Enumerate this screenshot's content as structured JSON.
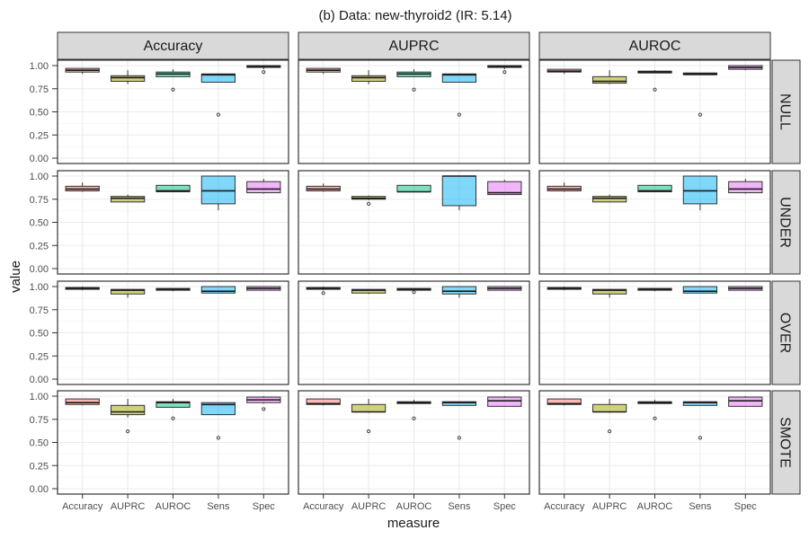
{
  "chart_data": {
    "type": "boxplot",
    "title": "(b) Data: new-thyroid2 (IR: 5.14)",
    "xlabel": "measure",
    "ylabel": "value",
    "ylim": [
      0,
      1
    ],
    "yticks": [
      "0.00",
      "0.25",
      "0.50",
      "0.75",
      "1.00"
    ],
    "grid": true,
    "categories": [
      "Accuracy",
      "AUPRC",
      "AUROC",
      "Sens",
      "Spec"
    ],
    "columns": [
      "Accuracy",
      "AUPRC",
      "AUROC"
    ],
    "rows": [
      "NULL",
      "UNDER",
      "OVER",
      "SMOTE"
    ],
    "colors": {
      "Accuracy": "#F8766D",
      "AUPRC": "#A3A500",
      "AUROC": "#00BF7D",
      "Sens": "#00B0F6",
      "Spec": "#E76BF3"
    },
    "panels": [
      {
        "row": "NULL",
        "col": "Accuracy",
        "boxes": [
          {
            "cat": "Accuracy",
            "wmin": 0.91,
            "q1": 0.93,
            "med": 0.95,
            "q3": 0.97,
            "wmax": 0.97,
            "out": []
          },
          {
            "cat": "AUPRC",
            "wmin": 0.8,
            "q1": 0.83,
            "med": 0.87,
            "q3": 0.89,
            "wmax": 0.95,
            "out": []
          },
          {
            "cat": "AUROC",
            "wmin": 0.88,
            "q1": 0.88,
            "med": 0.91,
            "q3": 0.93,
            "wmax": 0.96,
            "out": [
              0.74
            ]
          },
          {
            "cat": "Sens",
            "wmin": 0.82,
            "q1": 0.82,
            "med": 0.9,
            "q3": 0.91,
            "wmax": 0.91,
            "out": [
              0.47
            ]
          },
          {
            "cat": "Spec",
            "wmin": 0.96,
            "q1": 0.98,
            "med": 0.99,
            "q3": 1.0,
            "wmax": 1.0,
            "out": [
              0.93
            ]
          }
        ]
      },
      {
        "row": "NULL",
        "col": "AUPRC",
        "boxes": [
          {
            "cat": "Accuracy",
            "wmin": 0.91,
            "q1": 0.93,
            "med": 0.95,
            "q3": 0.97,
            "wmax": 0.97,
            "out": []
          },
          {
            "cat": "AUPRC",
            "wmin": 0.8,
            "q1": 0.83,
            "med": 0.87,
            "q3": 0.89,
            "wmax": 0.95,
            "out": []
          },
          {
            "cat": "AUROC",
            "wmin": 0.88,
            "q1": 0.88,
            "med": 0.91,
            "q3": 0.93,
            "wmax": 0.96,
            "out": [
              0.74
            ]
          },
          {
            "cat": "Sens",
            "wmin": 0.82,
            "q1": 0.82,
            "med": 0.9,
            "q3": 0.91,
            "wmax": 0.91,
            "out": [
              0.47
            ]
          },
          {
            "cat": "Spec",
            "wmin": 0.96,
            "q1": 0.98,
            "med": 0.99,
            "q3": 1.0,
            "wmax": 1.0,
            "out": [
              0.93
            ]
          }
        ]
      },
      {
        "row": "NULL",
        "col": "AUROC",
        "boxes": [
          {
            "cat": "Accuracy",
            "wmin": 0.91,
            "q1": 0.93,
            "med": 0.94,
            "q3": 0.96,
            "wmax": 0.96,
            "out": []
          },
          {
            "cat": "AUPRC",
            "wmin": 0.8,
            "q1": 0.81,
            "med": 0.83,
            "q3": 0.88,
            "wmax": 0.95,
            "out": []
          },
          {
            "cat": "AUROC",
            "wmin": 0.92,
            "q1": 0.92,
            "med": 0.93,
            "q3": 0.94,
            "wmax": 0.95,
            "out": [
              0.74
            ]
          },
          {
            "cat": "Sens",
            "wmin": 0.9,
            "q1": 0.9,
            "med": 0.91,
            "q3": 0.92,
            "wmax": 0.92,
            "out": [
              0.47
            ]
          },
          {
            "cat": "Spec",
            "wmin": 0.95,
            "q1": 0.96,
            "med": 0.98,
            "q3": 1.0,
            "wmax": 1.0,
            "out": []
          }
        ]
      },
      {
        "row": "UNDER",
        "col": "Accuracy",
        "boxes": [
          {
            "cat": "Accuracy",
            "wmin": 0.83,
            "q1": 0.84,
            "med": 0.86,
            "q3": 0.89,
            "wmax": 0.93,
            "out": []
          },
          {
            "cat": "AUPRC",
            "wmin": 0.72,
            "q1": 0.72,
            "med": 0.76,
            "q3": 0.78,
            "wmax": 0.8,
            "out": []
          },
          {
            "cat": "AUROC",
            "wmin": 0.83,
            "q1": 0.83,
            "med": 0.84,
            "q3": 0.9,
            "wmax": 0.9,
            "out": []
          },
          {
            "cat": "Sens",
            "wmin": 0.63,
            "q1": 0.7,
            "med": 0.84,
            "q3": 1.0,
            "wmax": 1.0,
            "out": []
          },
          {
            "cat": "Spec",
            "wmin": 0.81,
            "q1": 0.82,
            "med": 0.86,
            "q3": 0.94,
            "wmax": 0.97,
            "out": []
          }
        ]
      },
      {
        "row": "UNDER",
        "col": "AUPRC",
        "boxes": [
          {
            "cat": "Accuracy",
            "wmin": 0.83,
            "q1": 0.84,
            "med": 0.86,
            "q3": 0.89,
            "wmax": 0.92,
            "out": []
          },
          {
            "cat": "AUPRC",
            "wmin": 0.74,
            "q1": 0.75,
            "med": 0.76,
            "q3": 0.78,
            "wmax": 0.79,
            "out": [
              0.7
            ]
          },
          {
            "cat": "AUROC",
            "wmin": 0.83,
            "q1": 0.83,
            "med": 0.83,
            "q3": 0.9,
            "wmax": 0.9,
            "out": []
          },
          {
            "cat": "Sens",
            "wmin": 0.63,
            "q1": 0.68,
            "med": 1.0,
            "q3": 1.0,
            "wmax": 1.0,
            "out": []
          },
          {
            "cat": "Spec",
            "wmin": 0.8,
            "q1": 0.8,
            "med": 0.82,
            "q3": 0.94,
            "wmax": 0.96,
            "out": []
          }
        ]
      },
      {
        "row": "UNDER",
        "col": "AUROC",
        "boxes": [
          {
            "cat": "Accuracy",
            "wmin": 0.83,
            "q1": 0.84,
            "med": 0.86,
            "q3": 0.89,
            "wmax": 0.93,
            "out": []
          },
          {
            "cat": "AUPRC",
            "wmin": 0.72,
            "q1": 0.72,
            "med": 0.76,
            "q3": 0.78,
            "wmax": 0.8,
            "out": []
          },
          {
            "cat": "AUROC",
            "wmin": 0.83,
            "q1": 0.83,
            "med": 0.84,
            "q3": 0.9,
            "wmax": 0.9,
            "out": []
          },
          {
            "cat": "Sens",
            "wmin": 0.63,
            "q1": 0.7,
            "med": 0.84,
            "q3": 1.0,
            "wmax": 1.0,
            "out": []
          },
          {
            "cat": "Spec",
            "wmin": 0.81,
            "q1": 0.82,
            "med": 0.86,
            "q3": 0.94,
            "wmax": 0.97,
            "out": []
          }
        ]
      },
      {
        "row": "OVER",
        "col": "Accuracy",
        "boxes": [
          {
            "cat": "Accuracy",
            "wmin": 0.96,
            "q1": 0.97,
            "med": 0.98,
            "q3": 0.99,
            "wmax": 1.0,
            "out": []
          },
          {
            "cat": "AUPRC",
            "wmin": 0.88,
            "q1": 0.92,
            "med": 0.96,
            "q3": 0.97,
            "wmax": 0.97,
            "out": []
          },
          {
            "cat": "AUROC",
            "wmin": 0.95,
            "q1": 0.96,
            "med": 0.97,
            "q3": 0.98,
            "wmax": 0.98,
            "out": []
          },
          {
            "cat": "Sens",
            "wmin": 0.93,
            "q1": 0.93,
            "med": 0.95,
            "q3": 1.0,
            "wmax": 1.0,
            "out": []
          },
          {
            "cat": "Spec",
            "wmin": 0.96,
            "q1": 0.96,
            "med": 0.98,
            "q3": 1.0,
            "wmax": 1.0,
            "out": []
          }
        ]
      },
      {
        "row": "OVER",
        "col": "AUPRC",
        "boxes": [
          {
            "cat": "Accuracy",
            "wmin": 0.96,
            "q1": 0.97,
            "med": 0.98,
            "q3": 0.99,
            "wmax": 1.0,
            "out": [
              0.93
            ]
          },
          {
            "cat": "AUPRC",
            "wmin": 0.92,
            "q1": 0.93,
            "med": 0.96,
            "q3": 0.97,
            "wmax": 0.97,
            "out": []
          },
          {
            "cat": "AUROC",
            "wmin": 0.95,
            "q1": 0.96,
            "med": 0.97,
            "q3": 0.98,
            "wmax": 0.98,
            "out": [
              0.94
            ]
          },
          {
            "cat": "Sens",
            "wmin": 0.88,
            "q1": 0.92,
            "med": 0.95,
            "q3": 1.0,
            "wmax": 1.0,
            "out": []
          },
          {
            "cat": "Spec",
            "wmin": 0.96,
            "q1": 0.96,
            "med": 0.98,
            "q3": 1.0,
            "wmax": 1.0,
            "out": []
          }
        ]
      },
      {
        "row": "OVER",
        "col": "AUROC",
        "boxes": [
          {
            "cat": "Accuracy",
            "wmin": 0.96,
            "q1": 0.97,
            "med": 0.98,
            "q3": 0.99,
            "wmax": 1.0,
            "out": []
          },
          {
            "cat": "AUPRC",
            "wmin": 0.88,
            "q1": 0.92,
            "med": 0.96,
            "q3": 0.97,
            "wmax": 0.97,
            "out": []
          },
          {
            "cat": "AUROC",
            "wmin": 0.95,
            "q1": 0.96,
            "med": 0.97,
            "q3": 0.98,
            "wmax": 0.98,
            "out": []
          },
          {
            "cat": "Sens",
            "wmin": 0.93,
            "q1": 0.93,
            "med": 0.95,
            "q3": 1.0,
            "wmax": 1.0,
            "out": []
          },
          {
            "cat": "Spec",
            "wmin": 0.96,
            "q1": 0.96,
            "med": 0.98,
            "q3": 1.0,
            "wmax": 1.0,
            "out": []
          }
        ]
      },
      {
        "row": "SMOTE",
        "col": "Accuracy",
        "boxes": [
          {
            "cat": "Accuracy",
            "wmin": 0.9,
            "q1": 0.91,
            "med": 0.93,
            "q3": 0.97,
            "wmax": 0.97,
            "out": []
          },
          {
            "cat": "AUPRC",
            "wmin": 0.77,
            "q1": 0.8,
            "med": 0.83,
            "q3": 0.9,
            "wmax": 0.97,
            "out": [
              0.62
            ]
          },
          {
            "cat": "AUROC",
            "wmin": 0.88,
            "q1": 0.88,
            "med": 0.93,
            "q3": 0.94,
            "wmax": 0.97,
            "out": [
              0.76
            ]
          },
          {
            "cat": "Sens",
            "wmin": 0.8,
            "q1": 0.8,
            "med": 0.91,
            "q3": 0.93,
            "wmax": 0.93,
            "out": [
              0.55
            ]
          },
          {
            "cat": "Spec",
            "wmin": 0.92,
            "q1": 0.93,
            "med": 0.96,
            "q3": 0.99,
            "wmax": 1.0,
            "out": [
              0.86
            ]
          }
        ]
      },
      {
        "row": "SMOTE",
        "col": "AUPRC",
        "boxes": [
          {
            "cat": "Accuracy",
            "wmin": 0.9,
            "q1": 0.91,
            "med": 0.92,
            "q3": 0.97,
            "wmax": 0.97,
            "out": []
          },
          {
            "cat": "AUPRC",
            "wmin": 0.82,
            "q1": 0.83,
            "med": 0.83,
            "q3": 0.91,
            "wmax": 0.97,
            "out": [
              0.62
            ]
          },
          {
            "cat": "AUROC",
            "wmin": 0.92,
            "q1": 0.92,
            "med": 0.93,
            "q3": 0.94,
            "wmax": 0.96,
            "out": [
              0.76
            ]
          },
          {
            "cat": "Sens",
            "wmin": 0.9,
            "q1": 0.9,
            "med": 0.93,
            "q3": 0.94,
            "wmax": 0.94,
            "out": [
              0.55
            ]
          },
          {
            "cat": "Spec",
            "wmin": 0.89,
            "q1": 0.89,
            "med": 0.95,
            "q3": 0.99,
            "wmax": 1.0,
            "out": []
          }
        ]
      },
      {
        "row": "SMOTE",
        "col": "AUROC",
        "boxes": [
          {
            "cat": "Accuracy",
            "wmin": 0.9,
            "q1": 0.91,
            "med": 0.92,
            "q3": 0.97,
            "wmax": 0.97,
            "out": []
          },
          {
            "cat": "AUPRC",
            "wmin": 0.82,
            "q1": 0.83,
            "med": 0.83,
            "q3": 0.91,
            "wmax": 0.97,
            "out": [
              0.62
            ]
          },
          {
            "cat": "AUROC",
            "wmin": 0.92,
            "q1": 0.92,
            "med": 0.93,
            "q3": 0.94,
            "wmax": 0.96,
            "out": [
              0.76
            ]
          },
          {
            "cat": "Sens",
            "wmin": 0.9,
            "q1": 0.9,
            "med": 0.93,
            "q3": 0.94,
            "wmax": 0.94,
            "out": [
              0.55
            ]
          },
          {
            "cat": "Spec",
            "wmin": 0.89,
            "q1": 0.89,
            "med": 0.95,
            "q3": 0.99,
            "wmax": 1.0,
            "out": []
          }
        ]
      }
    ]
  }
}
